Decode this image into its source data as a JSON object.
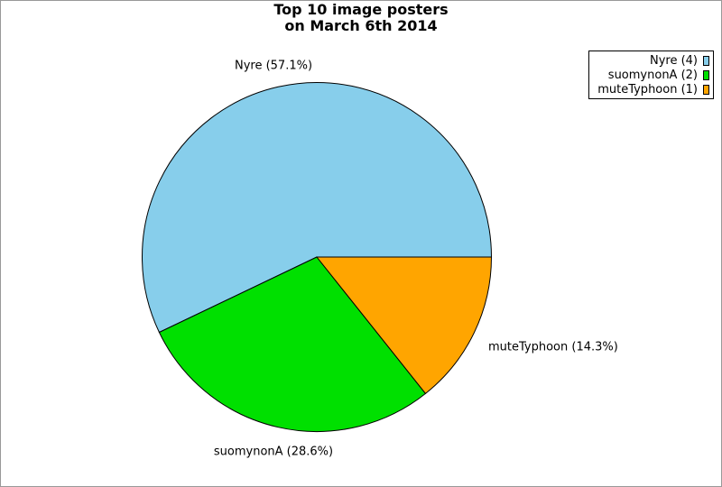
{
  "title": {
    "line1": "Top 10 image posters",
    "line2": "on March 6th 2014"
  },
  "legend": {
    "items": [
      {
        "label": "Nyre (4)",
        "color": "#87CEEB"
      },
      {
        "label": "suomynonA (2)",
        "color": "#00E000"
      },
      {
        "label": "muteTyphoon (1)",
        "color": "#FFA500"
      }
    ]
  },
  "chart_data": {
    "type": "pie",
    "title": "Top 10 image posters on March 6th 2014",
    "slices": [
      {
        "label": "Nyre",
        "count": 4,
        "percent": 57.1,
        "color": "#87CEEB",
        "callout": "Nyre (57.1%)"
      },
      {
        "label": "suomynonA",
        "count": 2,
        "percent": 28.6,
        "color": "#00E000",
        "callout": "suomynonA (28.6%)"
      },
      {
        "label": "muteTyphoon",
        "count": 1,
        "percent": 14.3,
        "color": "#FFA500",
        "callout": "muteTyphoon (14.3%)"
      }
    ],
    "start_angle_deg": 0,
    "direction": "counterclockwise",
    "legend_position": "upper right",
    "colors": {
      "edge": "#000000",
      "frame": "#999999",
      "background": "#FFFFFF"
    }
  }
}
